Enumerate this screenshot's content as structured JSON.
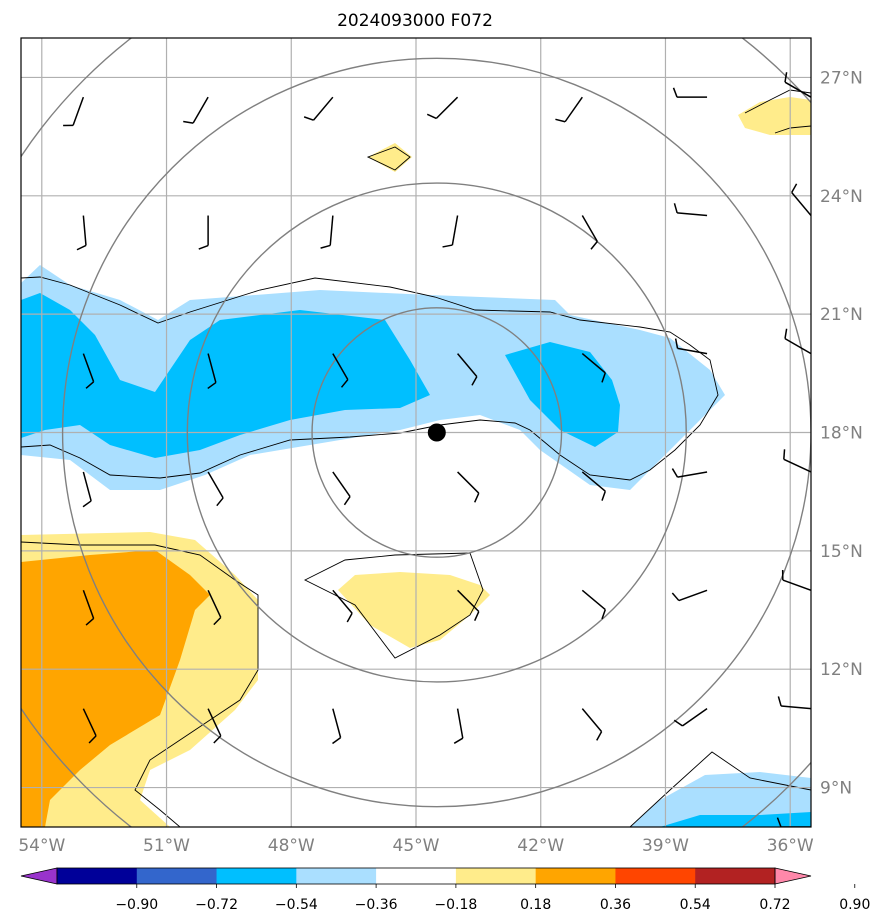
{
  "title": "2024093000 F072",
  "map": {
    "lon_range": [
      -54.5,
      -35.5
    ],
    "lat_range": [
      8.0,
      28.0
    ],
    "lon_ticks": [
      {
        "v": -54,
        "label": "54°W"
      },
      {
        "v": -51,
        "label": "51°W"
      },
      {
        "v": -48,
        "label": "48°W"
      },
      {
        "v": -45,
        "label": "45°W"
      },
      {
        "v": -42,
        "label": "42°W"
      },
      {
        "v": -39,
        "label": "39°W"
      },
      {
        "v": -36,
        "label": "36°W"
      }
    ],
    "lat_ticks": [
      {
        "v": 27,
        "label": "27°N"
      },
      {
        "v": 24,
        "label": "24°N"
      },
      {
        "v": 21,
        "label": "21°N"
      },
      {
        "v": 18,
        "label": "18°N"
      },
      {
        "v": 15,
        "label": "15°N"
      },
      {
        "v": 12,
        "label": "12°N"
      },
      {
        "v": 9,
        "label": "9°N"
      }
    ],
    "center": {
      "lon": -44.5,
      "lat": 18.0
    },
    "range_rings_deg": [
      3,
      6,
      9,
      12
    ],
    "ring_color": "#808080",
    "grid_color": "#b0b0b0",
    "contour_fill": {
      "colors": {
        "-0.90": "#9933cc",
        "-0.72": "#000099",
        "-0.54": "#3366cc",
        "-0.36": "#00bfff",
        "-0.18": "#aadfff",
        "0.00": "#ffffff",
        "0.18": "#ffec8b",
        "0.36": "#ffa500",
        "0.54": "#ff4500",
        "0.72": "#b22222",
        "0.90": "#ff88aa"
      }
    },
    "wind_barbs": "grid at 3° spacing over domain"
  },
  "colorbar": {
    "labels": [
      "−0.90",
      "−0.72",
      "−0.54",
      "−0.36",
      "−0.18",
      "0.18",
      "0.36",
      "0.54",
      "0.72",
      "0.90"
    ],
    "colors": [
      "#9933cc",
      "#000099",
      "#3366cc",
      "#00bfff",
      "#aadfff",
      "#ffffff",
      "#ffec8b",
      "#ffa500",
      "#ff4500",
      "#b22222",
      "#ff88aa"
    ]
  }
}
